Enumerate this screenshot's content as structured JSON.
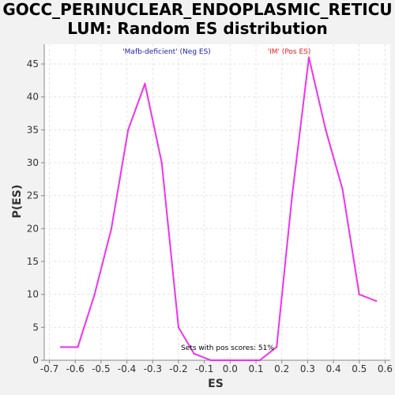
{
  "chart_data": {
    "type": "line",
    "title_lines": [
      "GOCC_PERINUCLEAR_ENDOPLASMIC_RETICU",
      "LUM: Random ES distribution"
    ],
    "xlabel": "ES",
    "ylabel": "P(ES)",
    "xlim": [
      -0.72,
      0.62
    ],
    "ylim": [
      0,
      48
    ],
    "x_ticks": [
      -0.7,
      -0.6,
      -0.5,
      -0.4,
      -0.3,
      -0.2,
      -0.1,
      0.0,
      0.1,
      0.2,
      0.3,
      0.4,
      0.5,
      0.6
    ],
    "x_tick_labels": [
      "-0.7",
      "-0.6",
      "-0.5",
      "-0.4",
      "-0.3",
      "-0.2",
      "-0.1",
      "0.0",
      "0.1",
      "0.2",
      "0.3",
      "0.4",
      "0.5",
      "0.6"
    ],
    "y_ticks": [
      0,
      5,
      10,
      15,
      20,
      25,
      30,
      35,
      40,
      45
    ],
    "y_tick_labels": [
      "0",
      "5",
      "10",
      "15",
      "20",
      "25",
      "30",
      "35",
      "40",
      "45"
    ],
    "grid": true,
    "series": [
      {
        "color": "#ee33ee",
        "x": [
          -0.655,
          -0.59,
          -0.525,
          -0.46,
          -0.395,
          -0.33,
          -0.265,
          -0.2,
          -0.14,
          -0.075,
          -0.01,
          0.055,
          0.115,
          0.18,
          0.24,
          0.305,
          0.37,
          0.435,
          0.5,
          0.565
        ],
        "y": [
          2,
          2,
          10,
          20,
          35,
          42,
          30,
          5,
          1,
          0,
          0,
          0,
          0,
          2,
          25,
          46,
          35,
          26,
          10,
          9
        ]
      }
    ],
    "annotations": {
      "neg_label": "'Mafb-deficient' (Neg ES)",
      "neg_color": "#2222aa",
      "pos_label": "'IM' (Pos ES)",
      "pos_color": "#dd2222",
      "pos_score_text": "Sets with pos scores: 51%"
    }
  }
}
